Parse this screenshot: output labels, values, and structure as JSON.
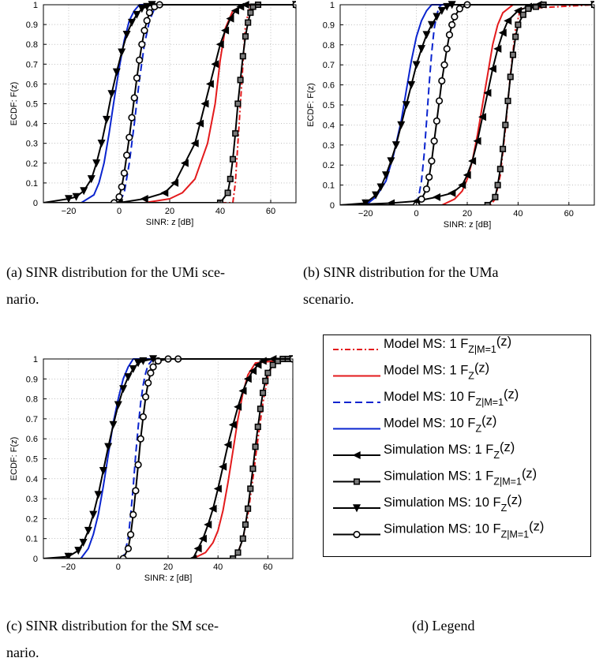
{
  "chart_data": [
    {
      "type": "line",
      "panel": "a",
      "ylabel": "ECDF: F(z)",
      "xlabel": "SINR: z [dB]",
      "xlim": [
        -30,
        70
      ],
      "ylim": [
        0,
        1
      ],
      "xticks": [
        -20,
        0,
        20,
        40,
        60
      ],
      "yticks": [
        0,
        0.1,
        0.2,
        0.3,
        0.4,
        0.5,
        0.6,
        0.7,
        0.8,
        0.9,
        1
      ],
      "xtick_labels": [
        "−20",
        "0",
        "20",
        "40",
        "60"
      ],
      "ytick_labels": [
        "0",
        "0.1",
        "0.2",
        "0.3",
        "0.4",
        "0.5",
        "0.6",
        "0.7",
        "0.8",
        "0.9",
        "1"
      ],
      "grid": true,
      "series": [
        {
          "key": "mdl1c",
          "x": [
            -30,
            45,
            46,
            48,
            50,
            52,
            70
          ],
          "y": [
            0,
            0,
            0.1,
            0.5,
            0.9,
            1,
            1
          ]
        },
        {
          "key": "mdl1",
          "x": [
            -30,
            10,
            20,
            25,
            30,
            35,
            38,
            40,
            42,
            45,
            50,
            70
          ],
          "y": [
            0,
            0,
            0.02,
            0.05,
            0.12,
            0.3,
            0.5,
            0.72,
            0.88,
            0.97,
            1,
            1
          ]
        },
        {
          "key": "mdl10c",
          "x": [
            -30,
            0,
            2,
            4,
            6,
            8,
            10,
            12,
            14,
            16,
            70
          ],
          "y": [
            0,
            0,
            0.05,
            0.2,
            0.4,
            0.62,
            0.8,
            0.92,
            0.98,
            1,
            1
          ]
        },
        {
          "key": "mdl10",
          "x": [
            -30,
            -15,
            -10,
            -8,
            -6,
            -4,
            -2,
            0,
            2,
            4,
            6,
            8,
            70
          ],
          "y": [
            0,
            0,
            0.04,
            0.1,
            0.2,
            0.35,
            0.52,
            0.68,
            0.82,
            0.92,
            0.97,
            1,
            1
          ]
        },
        {
          "key": "sim1",
          "x": [
            -30,
            0,
            10,
            18,
            22,
            26,
            30,
            32,
            34,
            36,
            38,
            40,
            42,
            44,
            46,
            48,
            50,
            70
          ],
          "y": [
            0,
            0,
            0.02,
            0.05,
            0.1,
            0.2,
            0.3,
            0.4,
            0.5,
            0.6,
            0.7,
            0.8,
            0.87,
            0.93,
            0.97,
            0.99,
            1,
            1
          ]
        },
        {
          "key": "sim1c",
          "x": [
            -30,
            40,
            43,
            44,
            45,
            46,
            47,
            48,
            49,
            50,
            51,
            52,
            53,
            55,
            70
          ],
          "y": [
            0,
            0,
            0.05,
            0.12,
            0.22,
            0.35,
            0.5,
            0.62,
            0.74,
            0.84,
            0.91,
            0.96,
            0.99,
            1,
            1
          ]
        },
        {
          "key": "sim10",
          "x": [
            -30,
            -20,
            -17,
            -14,
            -11,
            -9,
            -7,
            -5,
            -3,
            -1,
            1,
            3,
            5,
            7,
            9,
            11,
            13,
            70
          ],
          "y": [
            0,
            0.02,
            0.03,
            0.06,
            0.12,
            0.2,
            0.3,
            0.42,
            0.55,
            0.66,
            0.76,
            0.85,
            0.91,
            0.95,
            0.98,
            0.99,
            1,
            1
          ]
        },
        {
          "key": "sim10c",
          "x": [
            -30,
            -2,
            0,
            1,
            2,
            3,
            4,
            5,
            6,
            7,
            8,
            9,
            10,
            11,
            12,
            14,
            16,
            70
          ],
          "y": [
            0,
            0,
            0.03,
            0.08,
            0.15,
            0.24,
            0.33,
            0.43,
            0.53,
            0.63,
            0.72,
            0.8,
            0.87,
            0.92,
            0.96,
            0.99,
            1,
            1
          ]
        }
      ]
    },
    {
      "type": "line",
      "panel": "b",
      "ylabel": "ECDF: F(z)",
      "xlabel": "SINR: z [dB]",
      "xlim": [
        -30,
        70
      ],
      "ylim": [
        0,
        1
      ],
      "xticks": [
        -20,
        0,
        20,
        40,
        60
      ],
      "yticks": [
        0,
        0.1,
        0.2,
        0.3,
        0.4,
        0.5,
        0.6,
        0.7,
        0.8,
        0.9,
        1
      ],
      "xtick_labels": [
        "−20",
        "0",
        "20",
        "40",
        "60"
      ],
      "ytick_labels": [
        "0",
        "0.1",
        "0.2",
        "0.3",
        "0.4",
        "0.5",
        "0.6",
        "0.7",
        "0.8",
        "0.9",
        "1"
      ],
      "grid": true,
      "series": [
        {
          "key": "mdl1c",
          "x": [
            -30,
            29,
            31,
            33,
            35,
            37,
            39,
            41,
            70
          ],
          "y": [
            0,
            0,
            0.03,
            0.15,
            0.38,
            0.65,
            0.88,
            0.98,
            1
          ]
        },
        {
          "key": "mdl1",
          "x": [
            -30,
            10,
            15,
            18,
            20,
            22,
            24,
            26,
            28,
            30,
            32,
            34,
            38,
            70
          ],
          "y": [
            0,
            0,
            0.03,
            0.07,
            0.13,
            0.22,
            0.35,
            0.5,
            0.65,
            0.8,
            0.9,
            0.96,
            1,
            1
          ]
        },
        {
          "key": "mdl10c",
          "x": [
            -30,
            0,
            1,
            2,
            3,
            4,
            5,
            6,
            7,
            8,
            9,
            10,
            70
          ],
          "y": [
            0,
            0,
            0.05,
            0.12,
            0.25,
            0.42,
            0.6,
            0.76,
            0.88,
            0.95,
            0.99,
            1,
            1
          ]
        },
        {
          "key": "mdl10",
          "x": [
            -30,
            -20,
            -16,
            -12,
            -9,
            -6,
            -4,
            -2,
            0,
            2,
            4,
            6,
            70
          ],
          "y": [
            0,
            0,
            0.04,
            0.12,
            0.25,
            0.42,
            0.57,
            0.72,
            0.84,
            0.92,
            0.97,
            1,
            1
          ]
        },
        {
          "key": "sim1",
          "x": [
            -30,
            -10,
            0,
            8,
            14,
            18,
            20,
            22,
            24,
            26,
            28,
            30,
            32,
            34,
            36,
            40,
            44,
            48,
            70
          ],
          "y": [
            0,
            0.01,
            0.02,
            0.04,
            0.06,
            0.1,
            0.15,
            0.22,
            0.32,
            0.44,
            0.56,
            0.68,
            0.78,
            0.86,
            0.92,
            0.97,
            0.99,
            1,
            1
          ]
        },
        {
          "key": "sim1c",
          "x": [
            -30,
            28,
            31,
            32,
            33,
            34,
            35,
            36,
            37,
            38,
            39,
            40,
            42,
            44,
            47,
            50,
            70
          ],
          "y": [
            0,
            0,
            0.04,
            0.1,
            0.18,
            0.28,
            0.4,
            0.52,
            0.64,
            0.75,
            0.84,
            0.9,
            0.95,
            0.98,
            0.99,
            1,
            1
          ]
        },
        {
          "key": "sim10",
          "x": [
            -30,
            -20,
            -16,
            -14,
            -12,
            -10,
            -8,
            -6,
            -4,
            -2,
            0,
            2,
            4,
            6,
            8,
            10,
            12,
            14,
            70
          ],
          "y": [
            0,
            0.01,
            0.05,
            0.09,
            0.15,
            0.22,
            0.3,
            0.4,
            0.5,
            0.6,
            0.7,
            0.78,
            0.85,
            0.9,
            0.94,
            0.97,
            0.99,
            1,
            1
          ]
        },
        {
          "key": "sim10c",
          "x": [
            -30,
            0,
            2,
            4,
            5,
            6,
            7,
            8,
            9,
            10,
            11,
            12,
            13,
            14,
            15,
            17,
            20,
            70
          ],
          "y": [
            0,
            0,
            0.03,
            0.08,
            0.14,
            0.22,
            0.32,
            0.42,
            0.52,
            0.62,
            0.7,
            0.78,
            0.85,
            0.9,
            0.94,
            0.98,
            1,
            1
          ]
        }
      ]
    },
    {
      "type": "line",
      "panel": "c",
      "ylabel": "ECDF: F(z)",
      "xlabel": "SINR: z [dB]",
      "xlim": [
        -30,
        70
      ],
      "ylim": [
        0,
        1
      ],
      "xticks": [
        -20,
        0,
        20,
        40,
        60
      ],
      "yticks": [
        0,
        0.1,
        0.2,
        0.3,
        0.4,
        0.5,
        0.6,
        0.7,
        0.8,
        0.9,
        1
      ],
      "xtick_labels": [
        "−20",
        "0",
        "20",
        "40",
        "60"
      ],
      "ytick_labels": [
        "0",
        "0.1",
        "0.2",
        "0.3",
        "0.4",
        "0.5",
        "0.6",
        "0.7",
        "0.8",
        "0.9",
        "1"
      ],
      "grid": true,
      "series": [
        {
          "key": "mdl1c",
          "x": [
            -30,
            46,
            48,
            50,
            52,
            54,
            56,
            58,
            60,
            62,
            70
          ],
          "y": [
            0,
            0,
            0.03,
            0.1,
            0.22,
            0.4,
            0.6,
            0.78,
            0.91,
            0.98,
            1
          ]
        },
        {
          "key": "mdl1",
          "x": [
            -30,
            30,
            35,
            38,
            40,
            42,
            44,
            46,
            48,
            50,
            52,
            55,
            70
          ],
          "y": [
            0,
            0,
            0.03,
            0.08,
            0.14,
            0.24,
            0.38,
            0.54,
            0.7,
            0.83,
            0.92,
            0.98,
            1
          ]
        },
        {
          "key": "mdl10c",
          "x": [
            -30,
            2,
            4,
            5,
            6,
            7,
            8,
            9,
            10,
            11,
            12,
            14,
            70
          ],
          "y": [
            0,
            0,
            0.1,
            0.22,
            0.36,
            0.52,
            0.66,
            0.78,
            0.87,
            0.93,
            0.97,
            1,
            1
          ]
        },
        {
          "key": "mdl10",
          "x": [
            -30,
            -15,
            -12,
            -10,
            -8,
            -6,
            -4,
            -2,
            0,
            2,
            4,
            6,
            70
          ],
          "y": [
            0,
            0,
            0.05,
            0.12,
            0.22,
            0.36,
            0.52,
            0.68,
            0.8,
            0.9,
            0.96,
            1,
            1
          ]
        },
        {
          "key": "sim1",
          "x": [
            -30,
            30,
            32,
            34,
            36,
            38,
            40,
            42,
            44,
            46,
            48,
            50,
            52,
            54,
            56,
            58,
            62,
            70
          ],
          "y": [
            0,
            0,
            0.05,
            0.1,
            0.17,
            0.25,
            0.35,
            0.46,
            0.57,
            0.67,
            0.76,
            0.84,
            0.9,
            0.94,
            0.97,
            0.99,
            1,
            1
          ]
        },
        {
          "key": "sim1c",
          "x": [
            -30,
            46,
            48,
            50,
            51,
            52,
            53,
            54,
            55,
            56,
            57,
            58,
            59,
            60,
            62,
            64,
            66,
            68,
            70
          ],
          "y": [
            0,
            0,
            0.03,
            0.1,
            0.17,
            0.25,
            0.35,
            0.45,
            0.56,
            0.66,
            0.75,
            0.83,
            0.89,
            0.93,
            0.97,
            0.99,
            1,
            1,
            1
          ]
        },
        {
          "key": "sim10",
          "x": [
            -30,
            -20,
            -16,
            -14,
            -12,
            -10,
            -8,
            -6,
            -4,
            -2,
            0,
            2,
            4,
            6,
            8,
            10,
            14,
            70
          ],
          "y": [
            0,
            0.01,
            0.04,
            0.08,
            0.14,
            0.22,
            0.32,
            0.44,
            0.56,
            0.67,
            0.77,
            0.85,
            0.91,
            0.95,
            0.98,
            0.99,
            1,
            1
          ]
        },
        {
          "key": "sim10c",
          "x": [
            -30,
            2,
            4,
            5,
            6,
            7,
            8,
            9,
            10,
            11,
            12,
            13,
            14,
            16,
            20,
            24,
            70
          ],
          "y": [
            0,
            0,
            0.05,
            0.12,
            0.22,
            0.34,
            0.47,
            0.6,
            0.71,
            0.81,
            0.88,
            0.93,
            0.96,
            0.99,
            1,
            1,
            1
          ]
        }
      ]
    }
  ],
  "series_styles": {
    "mdl1c": {
      "color": "#e31a1c",
      "dash": "7 3 2 3",
      "width": 2,
      "marker": "none"
    },
    "mdl1": {
      "color": "#e31a1c",
      "dash": "",
      "width": 2,
      "marker": "none"
    },
    "mdl10c": {
      "color": "#0a24cf",
      "dash": "9 5",
      "width": 2,
      "marker": "none"
    },
    "mdl10": {
      "color": "#0a24cf",
      "dash": "",
      "width": 2,
      "marker": "none"
    },
    "sim1": {
      "color": "#000000",
      "dash": "",
      "width": 2,
      "marker": "triangle-left"
    },
    "sim1c": {
      "color": "#000000",
      "dash": "",
      "width": 2,
      "marker": "square"
    },
    "sim10": {
      "color": "#000000",
      "dash": "",
      "width": 2,
      "marker": "triangle-down"
    },
    "sim10c": {
      "color": "#000000",
      "dash": "",
      "width": 2,
      "marker": "circle"
    }
  },
  "legend": {
    "entries": [
      {
        "key": "mdl1c",
        "text": "Model MS: 1 F",
        "sub": "Z|M=1",
        "suffix": "(z)"
      },
      {
        "key": "mdl1",
        "text": "Model MS: 1 F",
        "sub": "Z",
        "suffix": "(z)"
      },
      {
        "key": "mdl10c",
        "text": "Model MS: 10 F",
        "sub": "Z|M=1",
        "suffix": "(z)"
      },
      {
        "key": "mdl10",
        "text": "Model MS: 10 F",
        "sub": "Z",
        "suffix": "(z)"
      },
      {
        "key": "sim1",
        "text": "Simulation MS: 1 F",
        "sub": "Z",
        "suffix": "(z)"
      },
      {
        "key": "sim1c",
        "text": "Simulation MS: 1 F",
        "sub": "Z|M=1",
        "suffix": "(z)"
      },
      {
        "key": "sim10",
        "text": "Simulation MS: 10 F",
        "sub": "Z",
        "suffix": "(z)"
      },
      {
        "key": "sim10c",
        "text": "Simulation MS: 10 F",
        "sub": "Z|M=1",
        "suffix": "(z)"
      }
    ]
  },
  "captions": {
    "a": {
      "line1": "(a)  SINR distribution for the UMi sce-",
      "line2": "nario."
    },
    "b": {
      "line1": "(b)  SINR  distribution  for  the  UMa",
      "line2": "scenario."
    },
    "c": {
      "line1": "(c)  SINR distribution for the SM sce-",
      "line2": "nario."
    },
    "d": {
      "line1": "(d)  Legend"
    }
  }
}
